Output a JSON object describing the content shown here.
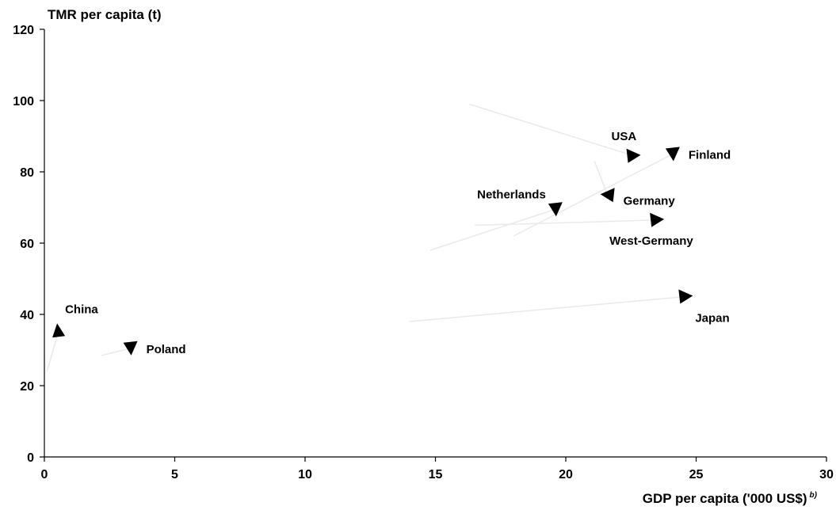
{
  "chart_data": {
    "type": "scatter",
    "ylabel": "TMR per capita (t)",
    "xlabel": "GDP per capita ('000 US$)",
    "xlabel_footnote": "b)",
    "xlim": [
      0,
      30
    ],
    "ylim": [
      0,
      120
    ],
    "xticks": [
      "0",
      "5",
      "10",
      "15",
      "20",
      "25",
      "30"
    ],
    "yticks": [
      "0",
      "20",
      "40",
      "60",
      "80",
      "100",
      "120"
    ],
    "grid": false,
    "legend": "none",
    "series": [
      {
        "name": "USA",
        "start": [
          16.3,
          99
        ],
        "end": [
          22.6,
          84.5
        ],
        "direction": "right",
        "label_anchor": "above-left"
      },
      {
        "name": "Finland",
        "start": [
          18,
          62
        ],
        "end": [
          24.1,
          85
        ],
        "direction": "down",
        "label_anchor": "right"
      },
      {
        "name": "Germany",
        "start": [
          21.1,
          83
        ],
        "end": [
          21.6,
          73.5
        ],
        "direction": "left",
        "label_anchor": "right-below"
      },
      {
        "name": "Netherlands",
        "start": [
          14.8,
          58
        ],
        "end": [
          19.6,
          69.5
        ],
        "direction": "down",
        "label_anchor": "left-above"
      },
      {
        "name": "West-Germany",
        "start": [
          16.5,
          65
        ],
        "end": [
          23.5,
          66.5
        ],
        "direction": "right",
        "label_anchor": "below"
      },
      {
        "name": "Japan",
        "start": [
          14,
          38
        ],
        "end": [
          24.6,
          45
        ],
        "direction": "right",
        "label_anchor": "below-right"
      },
      {
        "name": "China",
        "start": [
          0.1,
          24
        ],
        "end": [
          0.55,
          35.5
        ],
        "direction": "up",
        "label_anchor": "above-right"
      },
      {
        "name": "Poland",
        "start": [
          2.2,
          28.5
        ],
        "end": [
          3.3,
          30.5
        ],
        "direction": "down",
        "label_anchor": "right"
      }
    ],
    "colors": {
      "axis": "#000000",
      "trail": "#e9e9e9",
      "marker": "#000000"
    }
  }
}
